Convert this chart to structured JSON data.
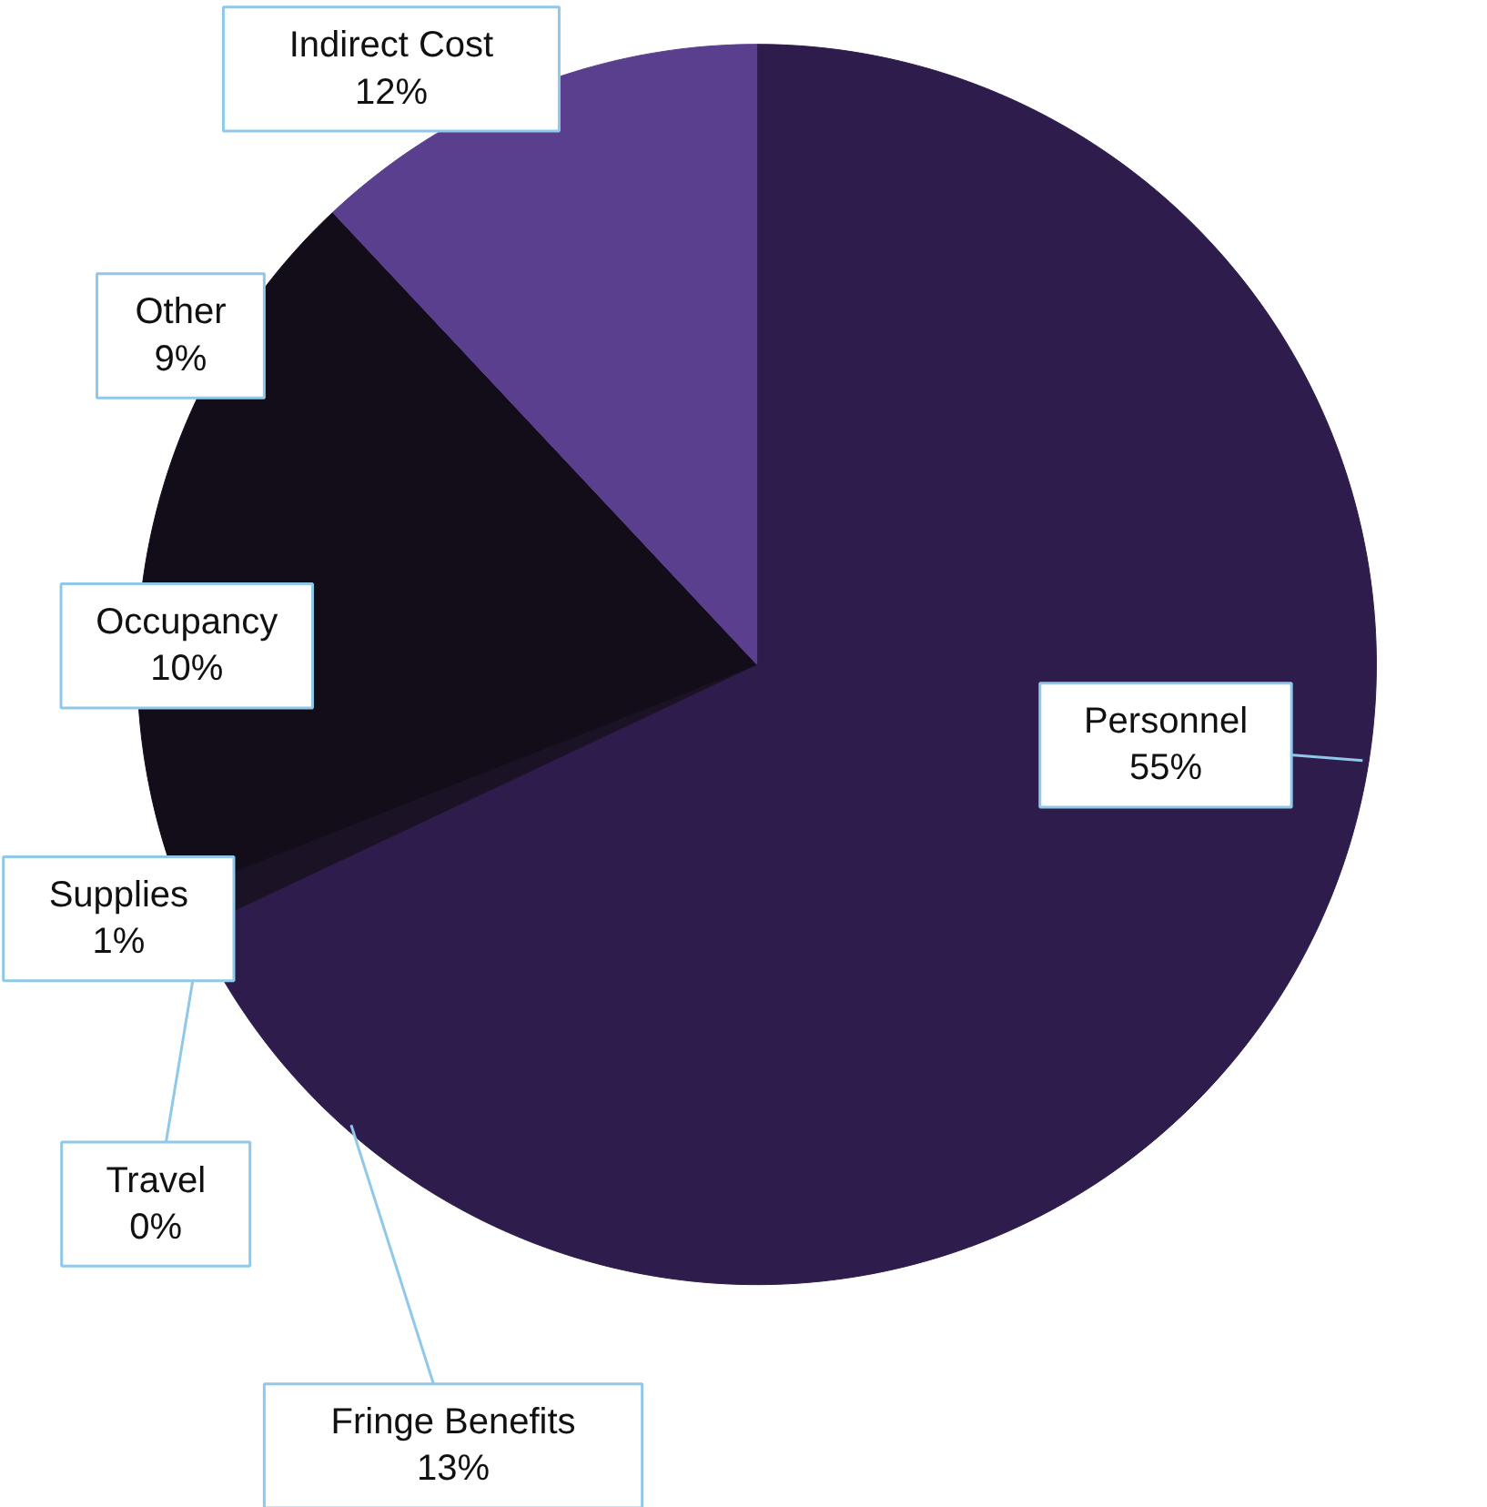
{
  "chart_data": {
    "type": "pie",
    "categories": [
      "Personnel",
      "Fringe Benefits",
      "Travel",
      "Supplies",
      "Occupancy",
      "Other",
      "Indirect Cost"
    ],
    "values": [
      55,
      13,
      0,
      1,
      10,
      9,
      12
    ],
    "value_labels": [
      "55%",
      "13%",
      "0%",
      "1%",
      "10%",
      "9%",
      "12%"
    ],
    "colors": [
      "#2e1c4c",
      "#2e1c4c",
      "#2a1a44",
      "#1c1226",
      "#130d1a",
      "#130d1a",
      "#5a3f8e"
    ]
  }
}
